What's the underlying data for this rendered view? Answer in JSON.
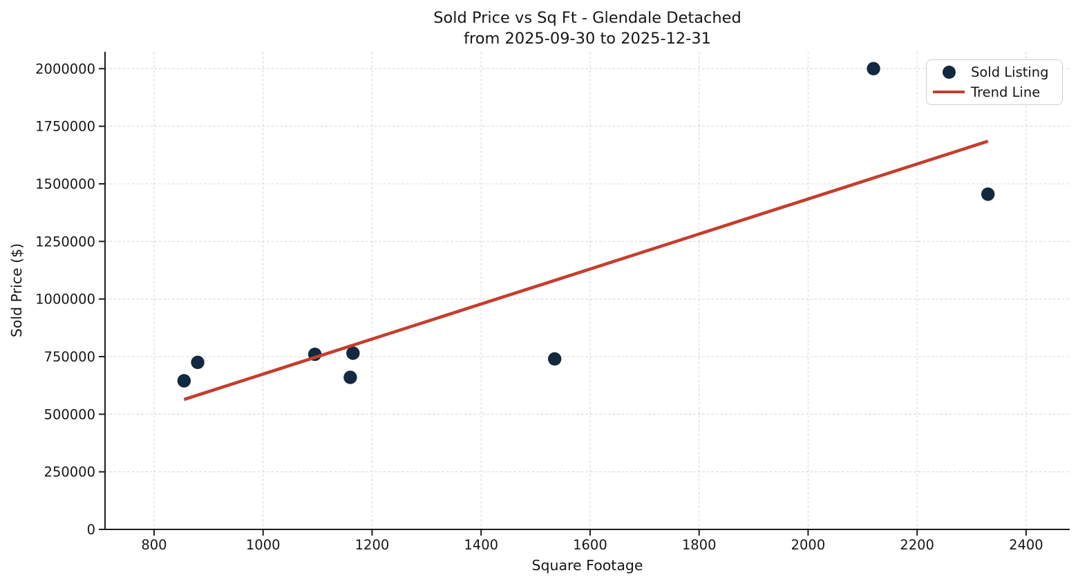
{
  "title": {
    "line1": "Sold Price vs Sq Ft - Glendale Detached",
    "line2": "from 2025-09-30 to 2025-12-31"
  },
  "axes": {
    "xlabel": "Square Footage",
    "ylabel": "Sold Price ($)"
  },
  "legend": {
    "items": [
      {
        "label": "Sold Listing",
        "swatch": "dot-marker"
      },
      {
        "label": "Trend Line",
        "swatch": "line-marker"
      }
    ]
  },
  "colors": {
    "marker": "#12293f",
    "trend": "#c43e2e",
    "grid": "#d8d8d8",
    "spine": "#1c1c1c",
    "text": "#161616",
    "legend_border": "#cfcfcf"
  },
  "chart_data": {
    "type": "scatter",
    "title": "Sold Price vs Sq Ft - Glendale Detached\nfrom 2025-09-30 to 2025-12-31",
    "xlabel": "Square Footage",
    "ylabel": "Sold Price ($)",
    "xlim": [
      710,
      2480
    ],
    "ylim": [
      0,
      2073000
    ],
    "x_ticks": [
      800,
      1000,
      1200,
      1400,
      1600,
      1800,
      2000,
      2200,
      2400
    ],
    "y_ticks": [
      0,
      250000,
      500000,
      750000,
      1000000,
      1250000,
      1500000,
      1750000,
      2000000
    ],
    "grid": true,
    "grid_style": "dashed",
    "legend_position": "upper right",
    "series": [
      {
        "name": "Sold Listing",
        "type": "scatter",
        "color": "#12293f",
        "marker_radius": 9.7,
        "points": [
          [
            855,
            645000
          ],
          [
            880,
            725000
          ],
          [
            1095,
            760000
          ],
          [
            1165,
            765000
          ],
          [
            1160,
            660000
          ],
          [
            1535,
            740000
          ],
          [
            2120,
            2000000
          ],
          [
            2330,
            1455000
          ]
        ]
      },
      {
        "name": "Trend Line",
        "type": "line",
        "color": "#c43e2e",
        "line_width": 4.6,
        "points": [
          [
            855,
            564000
          ],
          [
            2330,
            1685000
          ]
        ]
      }
    ]
  }
}
